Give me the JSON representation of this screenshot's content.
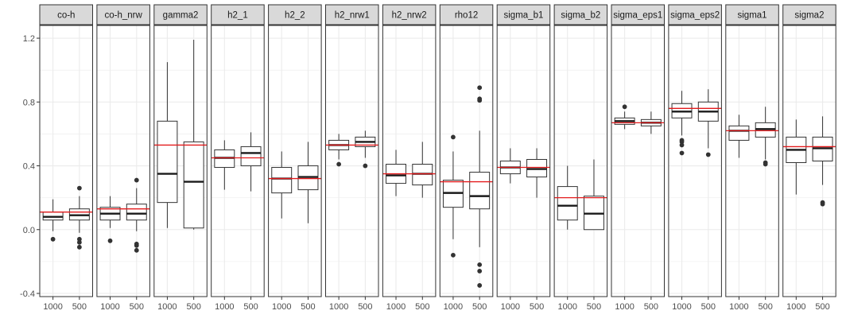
{
  "chart_data": {
    "type": "boxplot",
    "title": "",
    "xlabel": "",
    "ylabel": "",
    "ylim": [
      -0.42,
      1.28
    ],
    "y_ticks": [
      -0.4,
      0.0,
      0.4,
      0.8,
      1.2
    ],
    "y_tick_labels": [
      "-0.4",
      "0.0",
      "0.4",
      "0.8",
      "1.2"
    ],
    "categories": [
      "1000",
      "500"
    ],
    "colors": {
      "box_line": "#333333",
      "median": "#1a1a1a",
      "outlier": "#333333",
      "reference_line": "#e31a1c",
      "strip_fill": "#d9d9d9",
      "panel_border": "#333333",
      "grid": "#ebebeb"
    },
    "panels": [
      {
        "label": "co-h",
        "reference": 0.11,
        "boxes": [
          {
            "group": "1000",
            "lower": -0.01,
            "q1": 0.06,
            "median": 0.08,
            "q3": 0.11,
            "upper": 0.19,
            "outliers": [
              -0.06
            ]
          },
          {
            "group": "500",
            "lower": -0.02,
            "q1": 0.06,
            "median": 0.09,
            "q3": 0.13,
            "upper": 0.21,
            "outliers": [
              0.26,
              -0.06,
              -0.08,
              -0.11
            ]
          }
        ]
      },
      {
        "label": "co-h_nrw",
        "reference": 0.13,
        "boxes": [
          {
            "group": "1000",
            "lower": 0.01,
            "q1": 0.06,
            "median": 0.1,
            "q3": 0.14,
            "upper": 0.21,
            "outliers": [
              -0.07
            ]
          },
          {
            "group": "500",
            "lower": -0.01,
            "q1": 0.06,
            "median": 0.1,
            "q3": 0.16,
            "upper": 0.26,
            "outliers": [
              0.31,
              -0.09,
              -0.1,
              -0.13
            ]
          }
        ]
      },
      {
        "label": "gamma2",
        "reference": 0.53,
        "boxes": [
          {
            "group": "1000",
            "lower": 0.01,
            "q1": 0.17,
            "median": 0.35,
            "q3": 0.68,
            "upper": 1.05,
            "outliers": []
          },
          {
            "group": "500",
            "lower": 0.0,
            "q1": 0.01,
            "median": 0.3,
            "q3": 0.55,
            "upper": 1.19,
            "outliers": []
          }
        ]
      },
      {
        "label": "h2_1",
        "reference": 0.45,
        "boxes": [
          {
            "group": "1000",
            "lower": 0.25,
            "q1": 0.39,
            "median": 0.45,
            "q3": 0.5,
            "upper": 0.56,
            "outliers": []
          },
          {
            "group": "500",
            "lower": 0.24,
            "q1": 0.4,
            "median": 0.48,
            "q3": 0.52,
            "upper": 0.61,
            "outliers": []
          }
        ]
      },
      {
        "label": "h2_2",
        "reference": 0.32,
        "boxes": [
          {
            "group": "1000",
            "lower": 0.07,
            "q1": 0.23,
            "median": 0.32,
            "q3": 0.39,
            "upper": 0.49,
            "outliers": []
          },
          {
            "group": "500",
            "lower": 0.04,
            "q1": 0.25,
            "median": 0.33,
            "q3": 0.4,
            "upper": 0.55,
            "outliers": []
          }
        ]
      },
      {
        "label": "h2_nrw1",
        "reference": 0.53,
        "boxes": [
          {
            "group": "1000",
            "lower": 0.44,
            "q1": 0.5,
            "median": 0.53,
            "q3": 0.56,
            "upper": 0.6,
            "outliers": [
              0.41
            ]
          },
          {
            "group": "500",
            "lower": 0.45,
            "q1": 0.52,
            "median": 0.55,
            "q3": 0.58,
            "upper": 0.62,
            "outliers": [
              0.4
            ]
          }
        ]
      },
      {
        "label": "h2_nrw2",
        "reference": 0.35,
        "boxes": [
          {
            "group": "1000",
            "lower": 0.21,
            "q1": 0.29,
            "median": 0.34,
            "q3": 0.41,
            "upper": 0.5,
            "outliers": []
          },
          {
            "group": "500",
            "lower": 0.2,
            "q1": 0.28,
            "median": 0.35,
            "q3": 0.41,
            "upper": 0.55,
            "outliers": []
          }
        ]
      },
      {
        "label": "rho12",
        "reference": 0.3,
        "boxes": [
          {
            "group": "1000",
            "lower": -0.06,
            "q1": 0.14,
            "median": 0.23,
            "q3": 0.31,
            "upper": 0.49,
            "outliers": [
              0.58,
              -0.16
            ]
          },
          {
            "group": "500",
            "lower": -0.11,
            "q1": 0.13,
            "median": 0.21,
            "q3": 0.36,
            "upper": 0.62,
            "outliers": [
              0.89,
              0.82,
              0.81,
              -0.22,
              -0.26,
              -0.35
            ]
          }
        ]
      },
      {
        "label": "sigma_b1",
        "reference": 0.39,
        "boxes": [
          {
            "group": "1000",
            "lower": 0.29,
            "q1": 0.35,
            "median": 0.39,
            "q3": 0.43,
            "upper": 0.51,
            "outliers": []
          },
          {
            "group": "500",
            "lower": 0.2,
            "q1": 0.33,
            "median": 0.38,
            "q3": 0.44,
            "upper": 0.51,
            "outliers": []
          }
        ]
      },
      {
        "label": "sigma_b2",
        "reference": 0.2,
        "boxes": [
          {
            "group": "1000",
            "lower": 0.0,
            "q1": 0.06,
            "median": 0.15,
            "q3": 0.27,
            "upper": 0.4,
            "outliers": []
          },
          {
            "group": "500",
            "lower": 0.0,
            "q1": 0.0,
            "median": 0.1,
            "q3": 0.21,
            "upper": 0.44,
            "outliers": []
          }
        ]
      },
      {
        "label": "sigma_eps1",
        "reference": 0.67,
        "boxes": [
          {
            "group": "1000",
            "lower": 0.63,
            "q1": 0.66,
            "median": 0.68,
            "q3": 0.7,
            "upper": 0.74,
            "outliers": [
              0.77
            ]
          },
          {
            "group": "500",
            "lower": 0.6,
            "q1": 0.65,
            "median": 0.67,
            "q3": 0.69,
            "upper": 0.74,
            "outliers": []
          }
        ]
      },
      {
        "label": "sigma_eps2",
        "reference": 0.76,
        "boxes": [
          {
            "group": "1000",
            "lower": 0.59,
            "q1": 0.7,
            "median": 0.74,
            "q3": 0.79,
            "upper": 0.87,
            "outliers": [
              0.56,
              0.55,
              0.53,
              0.48
            ]
          },
          {
            "group": "500",
            "lower": 0.51,
            "q1": 0.68,
            "median": 0.74,
            "q3": 0.8,
            "upper": 0.88,
            "outliers": [
              0.47
            ]
          }
        ]
      },
      {
        "label": "sigma1",
        "reference": 0.62,
        "boxes": [
          {
            "group": "1000",
            "lower": 0.45,
            "q1": 0.56,
            "median": 0.62,
            "q3": 0.65,
            "upper": 0.72,
            "outliers": []
          },
          {
            "group": "500",
            "lower": 0.44,
            "q1": 0.58,
            "median": 0.63,
            "q3": 0.67,
            "upper": 0.77,
            "outliers": [
              0.42,
              0.41
            ]
          }
        ]
      },
      {
        "label": "sigma2",
        "reference": 0.52,
        "boxes": [
          {
            "group": "1000",
            "lower": 0.22,
            "q1": 0.42,
            "median": 0.5,
            "q3": 0.58,
            "upper": 0.69,
            "outliers": []
          },
          {
            "group": "500",
            "lower": 0.28,
            "q1": 0.43,
            "median": 0.51,
            "q3": 0.58,
            "upper": 0.71,
            "outliers": [
              0.17,
              0.16
            ]
          }
        ]
      }
    ]
  }
}
